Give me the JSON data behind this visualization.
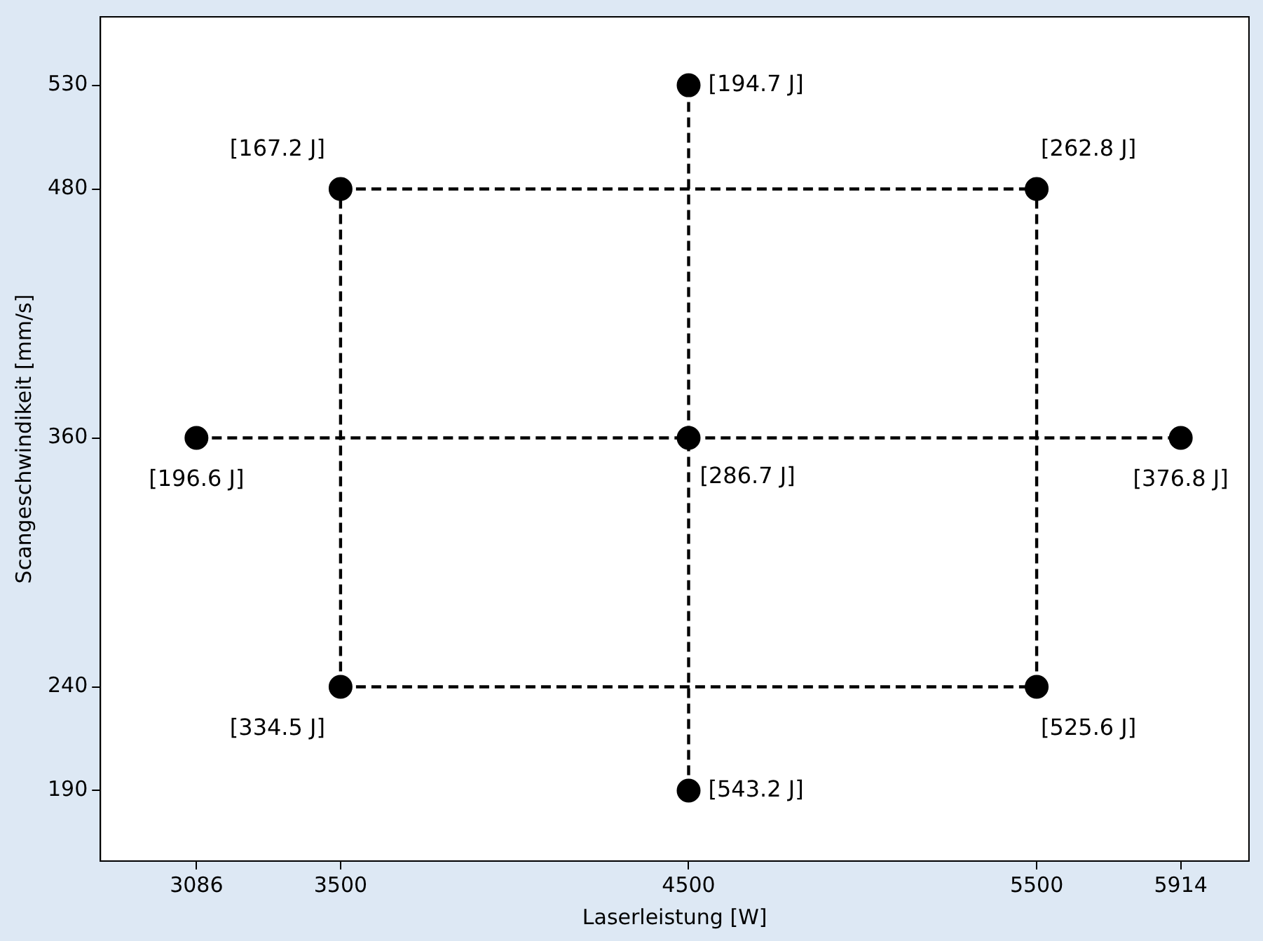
{
  "chart_data": {
    "type": "scatter",
    "xlabel": "Laserleistung [W]",
    "ylabel": "Scangeschwindikeit [mm/s]",
    "xlim": [
      2810,
      6110
    ],
    "ylim": [
      156,
      563
    ],
    "xticks": [
      3086,
      3500,
      4500,
      5500,
      5914
    ],
    "yticks": [
      190,
      240,
      360,
      480,
      530
    ],
    "grid": false,
    "legend": false,
    "series": [
      {
        "type": "line",
        "color": "#000000",
        "line_style": "dashed",
        "marker": "none",
        "x": [
          3500,
          5500
        ],
        "values": [
          480,
          480
        ]
      },
      {
        "type": "line",
        "color": "#000000",
        "line_style": "dashed",
        "marker": "none",
        "x": [
          3500,
          5500
        ],
        "values": [
          240,
          240
        ]
      },
      {
        "type": "line",
        "color": "#000000",
        "line_style": "dashed",
        "marker": "none",
        "x": [
          3086,
          5914
        ],
        "values": [
          360,
          360
        ]
      },
      {
        "type": "line",
        "color": "#000000",
        "line_style": "dashed",
        "marker": "none",
        "x": [
          3500,
          3500
        ],
        "values": [
          240,
          480
        ]
      },
      {
        "type": "line",
        "color": "#000000",
        "line_style": "dashed",
        "marker": "none",
        "x": [
          5500,
          5500
        ],
        "values": [
          240,
          480
        ]
      },
      {
        "type": "line",
        "color": "#000000",
        "line_style": "dashed",
        "marker": "none",
        "x": [
          4500,
          4500
        ],
        "values": [
          190,
          530
        ]
      },
      {
        "type": "scatter",
        "color": "#000000",
        "marker": "circle",
        "x": [
          4500,
          3500,
          5500,
          3086,
          4500,
          5914,
          3500,
          5500,
          4500
        ],
        "values": [
          530,
          480,
          480,
          360,
          360,
          360,
          240,
          240,
          190
        ]
      }
    ],
    "annotations": [
      {
        "text": "[194.7 J]",
        "x": 4500,
        "y": 530
      },
      {
        "text": "[167.2 J]",
        "x": 3500,
        "y": 480
      },
      {
        "text": "[262.8 J]",
        "x": 5500,
        "y": 480
      },
      {
        "text": "[196.6 J]",
        "x": 3086,
        "y": 360
      },
      {
        "text": "[286.7 J]",
        "x": 4500,
        "y": 360
      },
      {
        "text": "[376.8 J]",
        "x": 5914,
        "y": 360
      },
      {
        "text": "[334.5 J]",
        "x": 3500,
        "y": 240
      },
      {
        "text": "[525.6 J]",
        "x": 5500,
        "y": 240
      },
      {
        "text": "[543.2 J]",
        "x": 4500,
        "y": 190
      }
    ]
  }
}
